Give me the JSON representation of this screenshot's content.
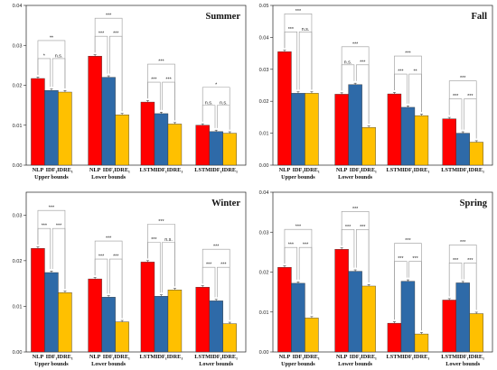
{
  "colors": [
    "#ff0000",
    "#2e6aa8",
    "#ffc000"
  ],
  "chart_data": [
    {
      "type": "bar",
      "title": "Summer",
      "ylim": [
        0,
        0.04
      ],
      "yticks": [
        "0.00",
        "0.01",
        "0.02",
        "0.03",
        "0.04"
      ],
      "ytick_values": [
        0,
        0.01,
        0.02,
        0.03,
        0.04
      ],
      "groups": [
        {
          "label": "Upper bounds",
          "bar_labels": [
            "NLP",
            "IDF₁",
            "IDRE₁"
          ],
          "values": [
            0.0217,
            0.0187,
            0.0183
          ],
          "sig": [
            {
              "a": 0,
              "b": 1,
              "text": "*"
            },
            {
              "a": 1,
              "b": 2,
              "text": "n.s."
            },
            {
              "a": 0,
              "b": 2,
              "text": "**"
            }
          ]
        },
        {
          "label": "Lower bounds",
          "bar_labels": [
            "NLP",
            "IDF₁",
            "IDRE₁"
          ],
          "values": [
            0.0273,
            0.022,
            0.0126
          ],
          "sig": [
            {
              "a": 0,
              "b": 1,
              "text": "***"
            },
            {
              "a": 1,
              "b": 2,
              "text": "***"
            },
            {
              "a": 0,
              "b": 2,
              "text": "***"
            }
          ]
        },
        {
          "label": "",
          "bar_labels": [
            "LSTM",
            "IDF₁",
            "IDRE₁"
          ],
          "values": [
            0.0158,
            0.0129,
            0.0103
          ],
          "sig": [
            {
              "a": 0,
              "b": 1,
              "text": "***"
            },
            {
              "a": 1,
              "b": 2,
              "text": "***"
            },
            {
              "a": 0,
              "b": 2,
              "text": "***"
            }
          ]
        },
        {
          "label": "",
          "bar_labels": [
            "LSTM",
            "IDF₁",
            "IDRE₁"
          ],
          "values": [
            0.01,
            0.0084,
            0.008
          ],
          "sig": [
            {
              "a": 0,
              "b": 1,
              "text": "n.s."
            },
            {
              "a": 1,
              "b": 2,
              "text": "n.s."
            },
            {
              "a": 0,
              "b": 2,
              "text": "*"
            }
          ]
        }
      ]
    },
    {
      "type": "bar",
      "title": "Fall",
      "ylim": [
        0,
        0.05
      ],
      "yticks": [
        "0.00",
        "0.01",
        "0.02",
        "0.03",
        "0.04",
        "0.05"
      ],
      "ytick_values": [
        0,
        0.01,
        0.02,
        0.03,
        0.04,
        0.05
      ],
      "groups": [
        {
          "label": "Upper bounds",
          "bar_labels": [
            "NLP",
            "IDF₁",
            "IDRE₁"
          ],
          "values": [
            0.0355,
            0.0225,
            0.0225
          ],
          "sig": [
            {
              "a": 0,
              "b": 1,
              "text": "***"
            },
            {
              "a": 1,
              "b": 2,
              "text": "n.s."
            },
            {
              "a": 0,
              "b": 2,
              "text": "***"
            }
          ]
        },
        {
          "label": "Lower bounds",
          "bar_labels": [
            "NLP",
            "IDF₁",
            "IDRE₁"
          ],
          "values": [
            0.0222,
            0.0252,
            0.0118
          ],
          "sig": [
            {
              "a": 0,
              "b": 1,
              "text": "n.s."
            },
            {
              "a": 1,
              "b": 2,
              "text": "***"
            },
            {
              "a": 0,
              "b": 2,
              "text": "***"
            }
          ]
        },
        {
          "label": "",
          "bar_labels": [
            "LSTM",
            "IDF₁",
            "IDRE₁"
          ],
          "values": [
            0.0223,
            0.0181,
            0.0155
          ],
          "sig": [
            {
              "a": 0,
              "b": 1,
              "text": "***"
            },
            {
              "a": 1,
              "b": 2,
              "text": "**"
            },
            {
              "a": 0,
              "b": 2,
              "text": "***"
            }
          ]
        },
        {
          "label": "",
          "bar_labels": [
            "LSTM",
            "IDF₁",
            "IDRE₁"
          ],
          "values": [
            0.0145,
            0.01,
            0.0072
          ],
          "sig": [
            {
              "a": 0,
              "b": 1,
              "text": "***"
            },
            {
              "a": 1,
              "b": 2,
              "text": "***"
            },
            {
              "a": 0,
              "b": 2,
              "text": "***"
            }
          ]
        }
      ]
    },
    {
      "type": "bar",
      "title": "Winter",
      "ylim": [
        0,
        0.035
      ],
      "yticks": [
        "0.00",
        "0.01",
        "0.02",
        "0.03"
      ],
      "ytick_values": [
        0,
        0.01,
        0.02,
        0.03
      ],
      "groups": [
        {
          "label": "Upper bounds",
          "bar_labels": [
            "NLP",
            "IDF₁",
            "IDRE₁"
          ],
          "values": [
            0.0227,
            0.0174,
            0.013
          ],
          "sig": [
            {
              "a": 0,
              "b": 1,
              "text": "***"
            },
            {
              "a": 1,
              "b": 2,
              "text": "***"
            },
            {
              "a": 0,
              "b": 2,
              "text": "***"
            }
          ]
        },
        {
          "label": "Lower bounds",
          "bar_labels": [
            "NLP",
            "IDF₁",
            "IDRE₁"
          ],
          "values": [
            0.016,
            0.012,
            0.0066
          ],
          "sig": [
            {
              "a": 0,
              "b": 1,
              "text": "***"
            },
            {
              "a": 1,
              "b": 2,
              "text": "***"
            },
            {
              "a": 0,
              "b": 2,
              "text": "***"
            }
          ]
        },
        {
          "label": "",
          "bar_labels": [
            "LSTM",
            "IDF₁",
            "IDRE₁"
          ],
          "values": [
            0.0197,
            0.0122,
            0.0136
          ],
          "sig": [
            {
              "a": 0,
              "b": 1,
              "text": "***"
            },
            {
              "a": 1,
              "b": 2,
              "text": "n.s."
            },
            {
              "a": 0,
              "b": 2,
              "text": "***"
            }
          ]
        },
        {
          "label": "Lower bounds",
          "bar_labels": [
            "LSTM",
            "IDF₁",
            "IDRE₁"
          ],
          "values": [
            0.0142,
            0.0112,
            0.0062
          ],
          "sig": [
            {
              "a": 0,
              "b": 1,
              "text": "***"
            },
            {
              "a": 1,
              "b": 2,
              "text": "***"
            },
            {
              "a": 0,
              "b": 2,
              "text": "***"
            }
          ]
        }
      ]
    },
    {
      "type": "bar",
      "title": "Spring",
      "ylim": [
        0,
        0.04
      ],
      "yticks": [
        "0.00",
        "0.01",
        "0.02",
        "0.03",
        "0.04"
      ],
      "ytick_values": [
        0,
        0.01,
        0.02,
        0.03,
        0.04
      ],
      "groups": [
        {
          "label": "Upper bounds",
          "bar_labels": [
            "NLP",
            "IDF₁",
            "IDRE₁"
          ],
          "values": [
            0.0212,
            0.0172,
            0.0085
          ],
          "sig": [
            {
              "a": 0,
              "b": 1,
              "text": "***"
            },
            {
              "a": 1,
              "b": 2,
              "text": "***"
            },
            {
              "a": 0,
              "b": 2,
              "text": "***"
            }
          ]
        },
        {
          "label": "Lower bounds",
          "bar_labels": [
            "NLP",
            "IDF₁",
            "IDRE₁"
          ],
          "values": [
            0.0257,
            0.0202,
            0.0165
          ],
          "sig": [
            {
              "a": 0,
              "b": 1,
              "text": "***"
            },
            {
              "a": 1,
              "b": 2,
              "text": "***"
            },
            {
              "a": 0,
              "b": 2,
              "text": "***"
            }
          ]
        },
        {
          "label": "",
          "bar_labels": [
            "LSTM",
            "IDF₁",
            "IDRE₁"
          ],
          "values": [
            0.0072,
            0.0177,
            0.0045
          ],
          "sig": [
            {
              "a": 0,
              "b": 1,
              "text": "***"
            },
            {
              "a": 1,
              "b": 2,
              "text": "***"
            },
            {
              "a": 0,
              "b": 2,
              "text": "***"
            }
          ]
        },
        {
          "label": "Lower bounds",
          "bar_labels": [
            "LSTM",
            "IDF₁",
            "IDRE₁"
          ],
          "values": [
            0.013,
            0.0173,
            0.0096
          ],
          "sig": [
            {
              "a": 0,
              "b": 1,
              "text": "***"
            },
            {
              "a": 1,
              "b": 2,
              "text": "***"
            },
            {
              "a": 0,
              "b": 2,
              "text": "***"
            }
          ]
        }
      ]
    }
  ]
}
